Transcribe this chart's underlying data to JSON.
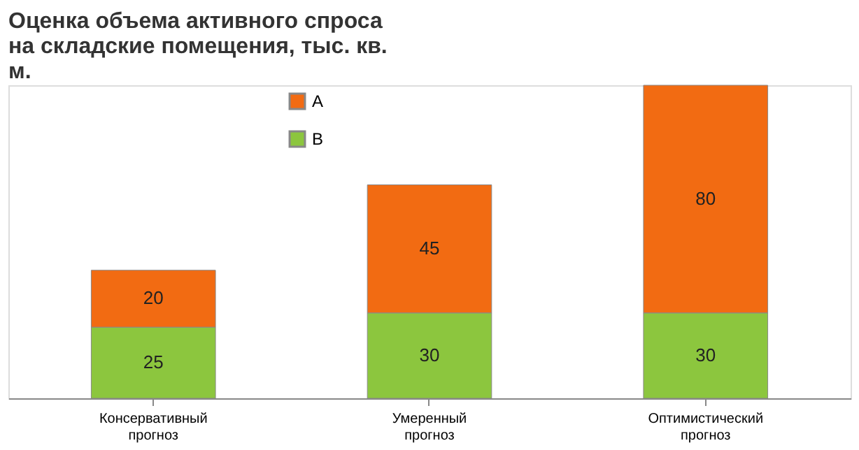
{
  "chart_data": {
    "type": "bar",
    "title": "Оценка объема активного спроса на складские помещения, тыс. кв. м.",
    "categories": [
      "Консервативный прогноз",
      "Умеренный прогноз",
      "Оптимистический прогноз"
    ],
    "stacked": true,
    "data_labels": true,
    "legend": "top left",
    "grid": false,
    "series": [
      {
        "name": "B",
        "color": "#8cc63e",
        "values": [
          25,
          30,
          30
        ]
      },
      {
        "name": "A",
        "color": "#f26b12",
        "values": [
          20,
          45,
          80
        ]
      }
    ]
  }
}
